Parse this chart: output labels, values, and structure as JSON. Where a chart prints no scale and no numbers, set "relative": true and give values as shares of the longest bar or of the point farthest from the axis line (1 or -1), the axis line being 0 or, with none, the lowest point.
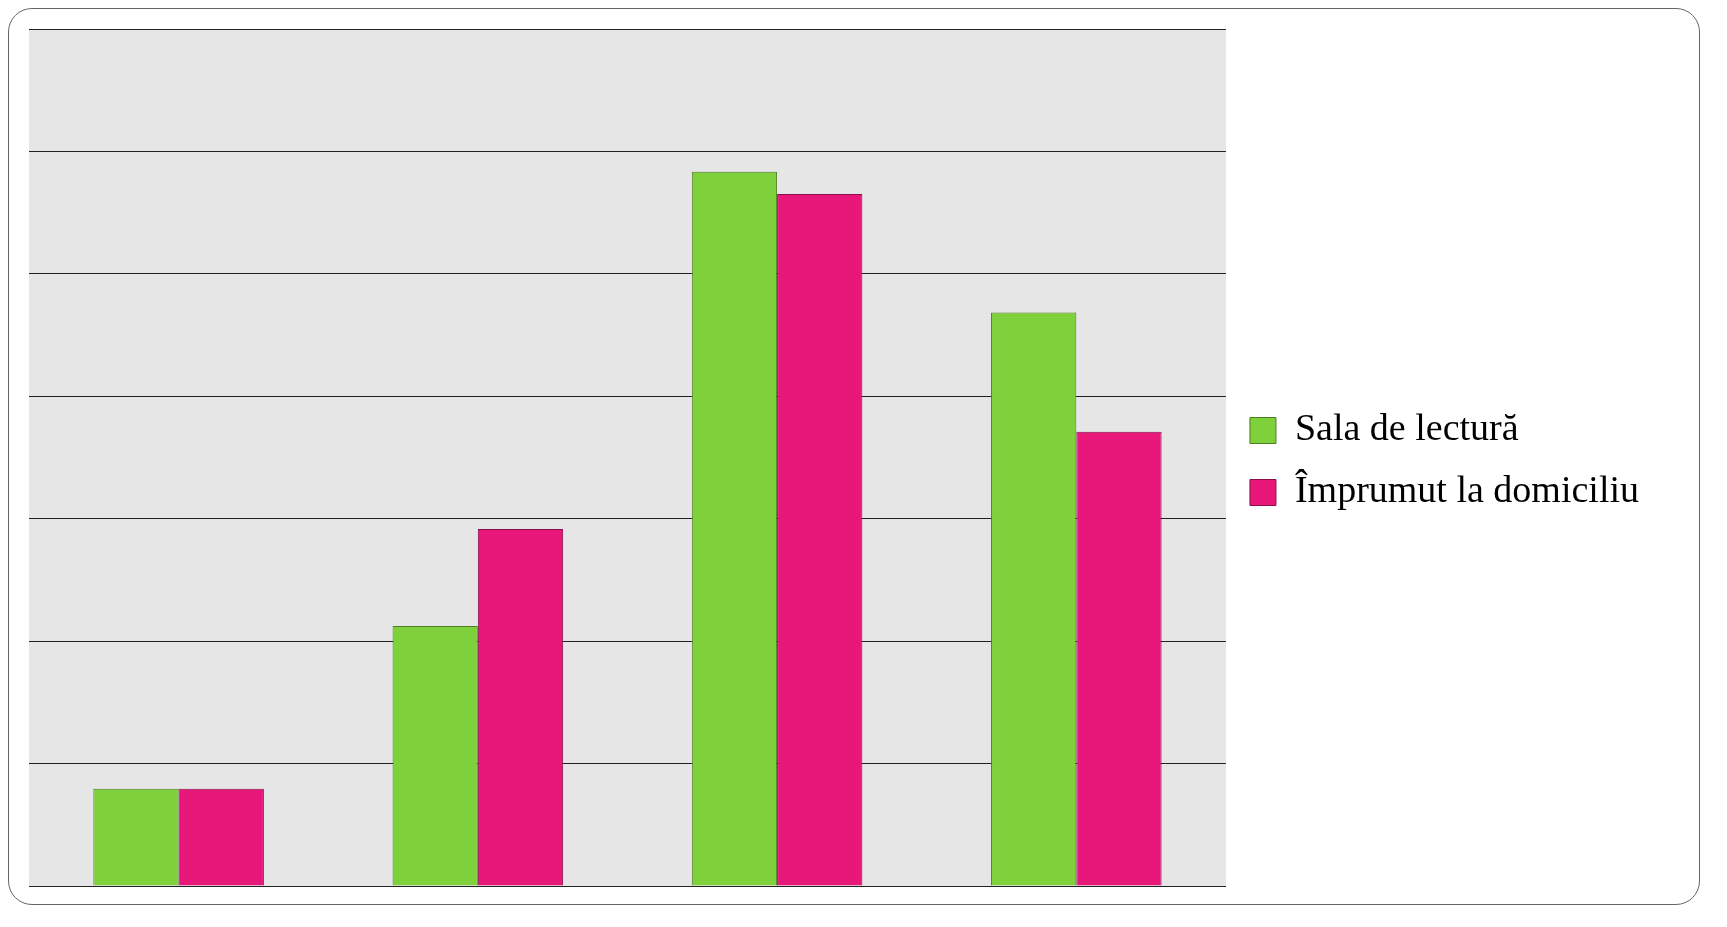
{
  "chart_data": {
    "type": "bar",
    "relative": true,
    "categories": [
      null,
      null,
      null,
      null
    ],
    "series": [
      {
        "name": "Sala de lectură",
        "color": "#7fd13b",
        "values": [
          0.136,
          0.364,
          1,
          0.803
        ]
      },
      {
        "name": "Împrumut la domiciliu",
        "color": "#e8177a",
        "values": [
          0.136,
          0.5,
          0.969,
          0.636
        ]
      }
    ],
    "grid": "y",
    "legend": "right"
  }
}
